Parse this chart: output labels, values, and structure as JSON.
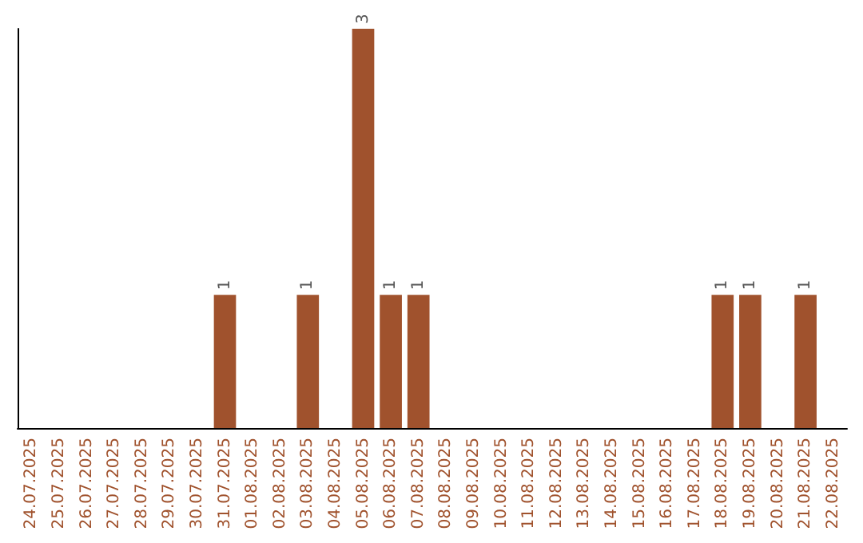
{
  "chart_data": {
    "type": "bar",
    "categories": [
      "24.07.2025",
      "25.07.2025",
      "26.07.2025",
      "27.07.2025",
      "28.07.2025",
      "29.07.2025",
      "30.07.2025",
      "31.07.2025",
      "01.08.2025",
      "02.08.2025",
      "03.08.2025",
      "04.08.2025",
      "05.08.2025",
      "06.08.2025",
      "07.08.2025",
      "08.08.2025",
      "09.08.2025",
      "10.08.2025",
      "11.08.2025",
      "12.08.2025",
      "13.08.2025",
      "14.08.2025",
      "15.08.2025",
      "16.08.2025",
      "17.08.2025",
      "18.08.2025",
      "19.08.2025",
      "20.08.2025",
      "21.08.2025",
      "22.08.2025"
    ],
    "values": [
      0,
      0,
      0,
      0,
      0,
      0,
      0,
      1,
      0,
      0,
      1,
      0,
      3,
      1,
      1,
      0,
      0,
      0,
      0,
      0,
      0,
      0,
      0,
      0,
      0,
      1,
      1,
      0,
      1,
      0
    ],
    "color": "#a0522d",
    "value_labels": [
      null,
      null,
      null,
      null,
      null,
      null,
      null,
      "1",
      null,
      null,
      "1",
      null,
      "3",
      "1",
      "1",
      null,
      null,
      null,
      null,
      null,
      null,
      null,
      null,
      null,
      null,
      "1",
      "1",
      null,
      "1",
      null
    ],
    "tick_labels": "x"
  }
}
